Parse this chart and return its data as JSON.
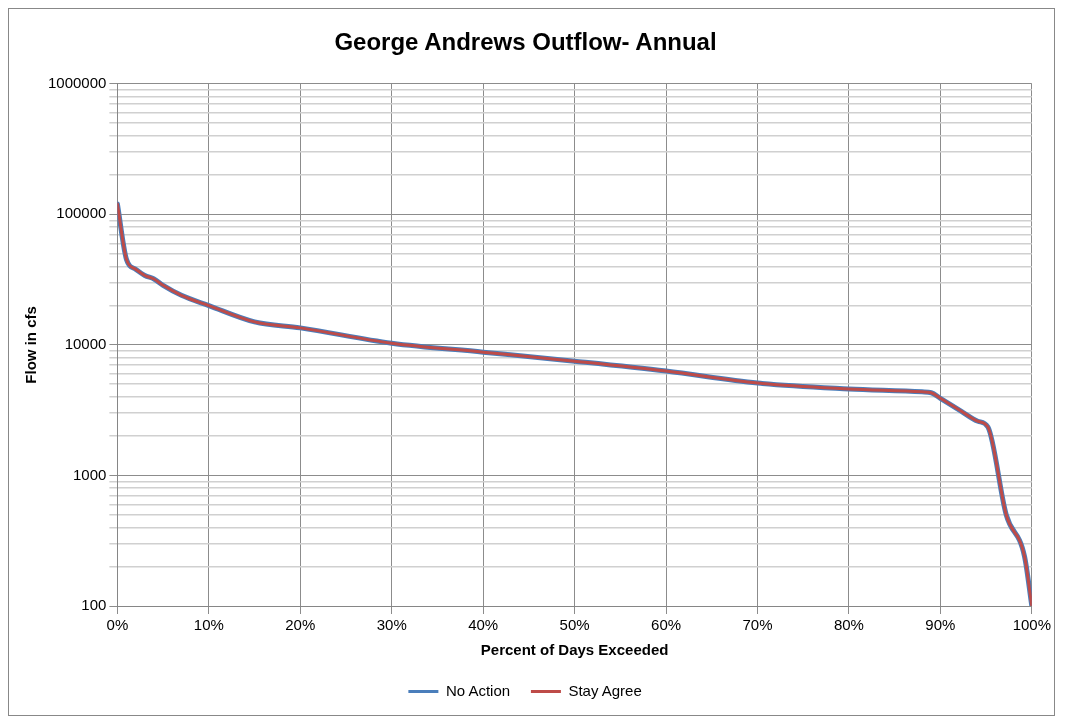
{
  "chart_data": {
    "type": "line",
    "title": "George Andrews Outflow- Annual",
    "xlabel": "Percent of Days Exceeded",
    "ylabel": "Flow in cfs",
    "x": [
      0,
      1,
      2,
      3,
      4,
      5,
      7,
      10,
      15,
      20,
      30,
      40,
      50,
      60,
      70,
      80,
      88,
      89,
      90,
      92.3,
      94.1,
      95.2,
      97.2,
      99.2,
      100
    ],
    "series": [
      {
        "name": "No Action",
        "color": "#4a7ebb",
        "values": [
          120000,
          45000,
          38000,
          34000,
          32000,
          28600,
          24000,
          20000,
          15000,
          13500,
          10300,
          8800,
          7500,
          6300,
          5100,
          4600,
          4370,
          4300,
          3900,
          3100,
          2600,
          2350,
          500,
          240,
          100
        ]
      },
      {
        "name": "Stay Agree",
        "color": "#be4b48",
        "values": [
          120000,
          45000,
          38000,
          34000,
          32000,
          28600,
          24000,
          20000,
          15000,
          13500,
          10300,
          8800,
          7500,
          6300,
          5100,
          4600,
          4370,
          4300,
          3900,
          3100,
          2600,
          2350,
          500,
          240,
          100
        ]
      }
    ],
    "log": "y",
    "xlim": [
      0,
      100
    ],
    "ylim": [
      100,
      1000000
    ],
    "xticks": [
      {
        "value": 0,
        "label": "0%"
      },
      {
        "value": 10,
        "label": "10%"
      },
      {
        "value": 20,
        "label": "20%"
      },
      {
        "value": 30,
        "label": "30%"
      },
      {
        "value": 40,
        "label": "40%"
      },
      {
        "value": 50,
        "label": "50%"
      },
      {
        "value": 60,
        "label": "60%"
      },
      {
        "value": 70,
        "label": "70%"
      },
      {
        "value": 80,
        "label": "80%"
      },
      {
        "value": 90,
        "label": "90%"
      },
      {
        "value": 100,
        "label": "100%"
      }
    ],
    "yticks": [
      100,
      1000,
      10000,
      100000,
      1000000
    ],
    "grid": true,
    "legend": "bottom",
    "marker": "none",
    "line_style": "solid"
  }
}
